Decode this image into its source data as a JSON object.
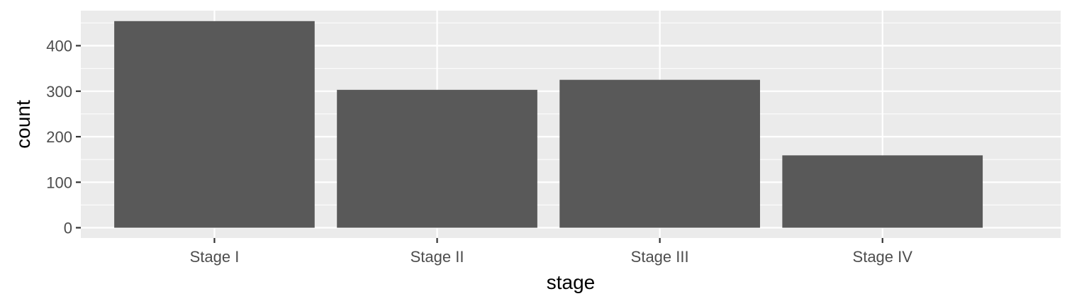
{
  "chart_data": {
    "type": "bar",
    "title": "",
    "xlabel": "stage",
    "ylabel": "count",
    "categories": [
      "Stage I",
      "Stage II",
      "Stage III",
      "Stage IV"
    ],
    "values": [
      454,
      303,
      325,
      159
    ],
    "ylim": [
      0,
      472
    ],
    "yticks": [
      0,
      100,
      200,
      300,
      400
    ],
    "ytick_labels": [
      "0",
      "100",
      "200",
      "300",
      "400"
    ],
    "grid": true,
    "legend": "none",
    "colors": {
      "panel": "#ebebeb",
      "grid": "#ffffff",
      "bar": "#595959",
      "tick": "#333333",
      "tick_label": "#4d4d4d",
      "title": "#000000"
    }
  }
}
